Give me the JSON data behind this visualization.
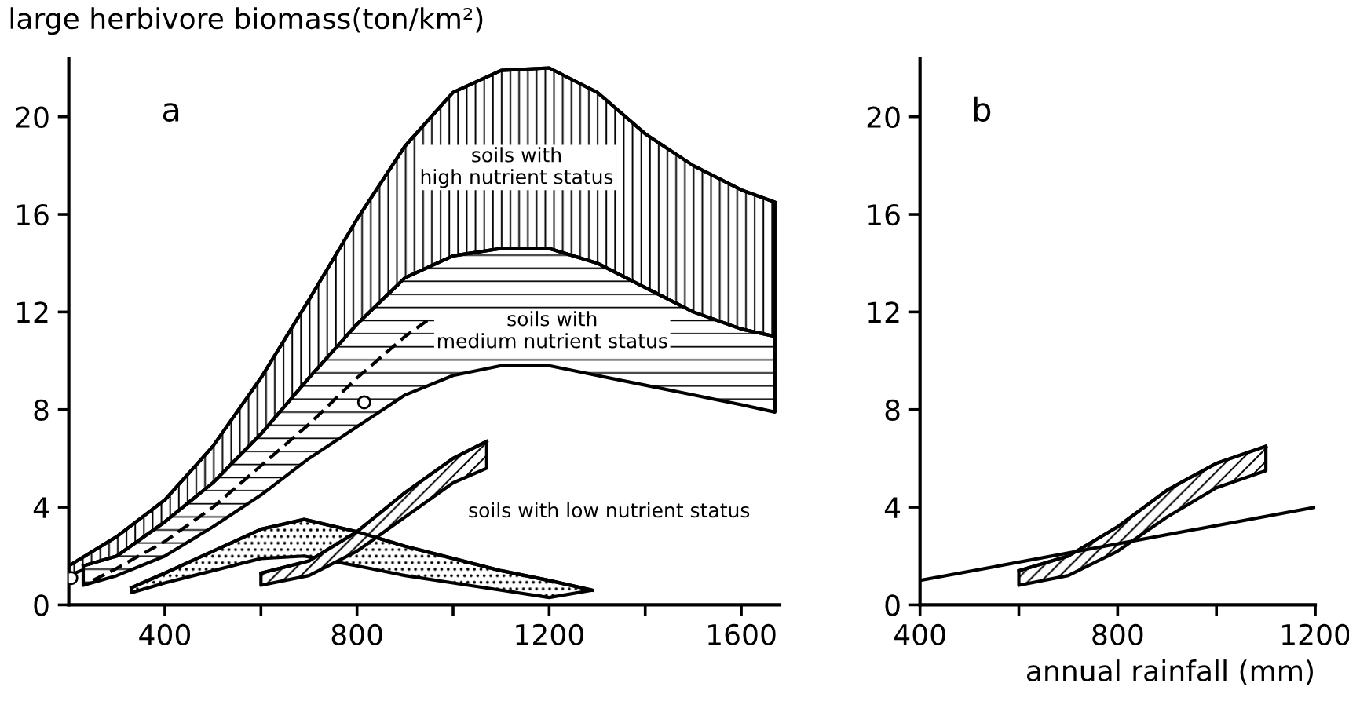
{
  "chart_data": [
    {
      "type": "line",
      "ylabel": "large herbivore biomass(ton/km²)",
      "xlim": [
        200,
        1680
      ],
      "ylim": [
        0,
        22.4
      ],
      "xticks": [
        {
          "value": 400,
          "label": "400"
        },
        {
          "value": 600,
          "label": null
        },
        {
          "value": 800,
          "label": "800"
        },
        {
          "value": 1000,
          "label": null
        },
        {
          "value": 1200,
          "label": "1200"
        },
        {
          "value": 1400,
          "label": null
        },
        {
          "value": 1600,
          "label": "1600"
        }
      ],
      "yticks": [
        0,
        4,
        8,
        12,
        16,
        20
      ],
      "grid": false,
      "legend": false,
      "annotations": [
        "a",
        "soils with\nhigh nutrient status",
        "soils with\nmedium nutrient status",
        "soils with low nutrient status"
      ],
      "series": [
        {
          "color": "#000000",
          "x": [
            200,
            300,
            400,
            500,
            600,
            700,
            800,
            900,
            1000,
            1100,
            1200,
            1300,
            1400,
            1500,
            1600,
            1670
          ],
          "values": [
            1.6,
            2.8,
            4.3,
            6.5,
            9.3,
            12.5,
            15.8,
            18.8,
            21.0,
            21.9,
            22.0,
            21.0,
            19.3,
            18.0,
            17.0,
            16.5
          ],
          "upper": [
            1.6,
            2.8,
            4.3,
            6.5,
            9.3,
            12.5,
            15.8,
            18.8,
            21.0,
            21.9,
            22.0,
            21.0,
            19.3,
            18.0,
            17.0,
            16.5
          ],
          "lower": [
            1.2,
            2.0,
            3.4,
            5.0,
            7.0,
            9.3,
            11.5,
            13.4,
            14.3,
            14.6,
            14.6,
            14.0,
            13.0,
            12.0,
            11.3,
            11.0
          ]
        },
        {
          "color": "#000000",
          "x": [
            230,
            300,
            400,
            500,
            600,
            700,
            800,
            900,
            1000,
            1100,
            1200,
            1300,
            1400,
            1500,
            1600,
            1670
          ],
          "values": [
            1.6,
            2.0,
            3.4,
            5.0,
            7.0,
            9.3,
            11.5,
            13.4,
            14.3,
            14.6,
            14.6,
            14.0,
            13.0,
            12.0,
            11.3,
            11.0
          ],
          "upper": [
            1.6,
            2.0,
            3.4,
            5.0,
            7.0,
            9.3,
            11.5,
            13.4,
            14.3,
            14.6,
            14.6,
            14.0,
            13.0,
            12.0,
            11.3,
            11.0
          ],
          "lower": [
            0.8,
            1.2,
            2.0,
            3.2,
            4.5,
            6.0,
            7.3,
            8.6,
            9.4,
            9.8,
            9.8,
            9.4,
            9.0,
            8.6,
            8.2,
            7.9
          ]
        },
        {
          "color": "#000000",
          "x": [
            330,
            400,
            500,
            600,
            690,
            800,
            900,
            1000,
            1100,
            1200,
            1290
          ],
          "values": [
            0.7,
            1.3,
            2.2,
            3.1,
            3.5,
            3.0,
            2.4,
            1.9,
            1.4,
            1.0,
            0.6
          ],
          "upper": [
            0.7,
            1.3,
            2.2,
            3.1,
            3.5,
            3.0,
            2.4,
            1.9,
            1.4,
            1.0,
            0.6
          ],
          "lower": [
            0.5,
            0.9,
            1.4,
            1.9,
            2.0,
            1.6,
            1.2,
            0.9,
            0.6,
            0.3,
            0.6
          ]
        },
        {
          "color": "#000000",
          "x": [
            600,
            700,
            800,
            900,
            1000,
            1070
          ],
          "values": [
            1.3,
            1.8,
            3.0,
            4.6,
            6.0,
            6.7
          ],
          "upper": [
            1.3,
            1.8,
            3.0,
            4.6,
            6.0,
            6.7
          ],
          "lower": [
            0.8,
            1.2,
            2.2,
            3.6,
            5.0,
            5.6
          ]
        },
        {
          "type": "line",
          "color": "#000000",
          "line_style": "dashed",
          "x": [
            250,
            300,
            400,
            500,
            600,
            700,
            800,
            900,
            950
          ],
          "values": [
            1.0,
            1.5,
            2.6,
            4.0,
            5.7,
            7.4,
            9.3,
            11.0,
            11.7
          ]
        },
        {
          "type": "scatter",
          "color": "#000000",
          "marker": "circle",
          "x": [
            205,
            815
          ],
          "values": [
            1.1,
            8.3
          ]
        }
      ]
    },
    {
      "type": "line",
      "xlabel": "annual rainfall (mm)",
      "xlim": [
        400,
        1200
      ],
      "ylim": [
        0,
        22.4
      ],
      "xticks": [
        {
          "value": 400,
          "label": "400"
        },
        {
          "value": 600,
          "label": null
        },
        {
          "value": 800,
          "label": "800"
        },
        {
          "value": 1000,
          "label": null
        },
        {
          "value": 1200,
          "label": "1200"
        }
      ],
      "yticks": [
        0,
        4,
        8,
        12,
        16,
        20
      ],
      "grid": false,
      "legend": false,
      "annotations": [
        "b"
      ],
      "series": [
        {
          "color": "#000000",
          "x": [
            600,
            700,
            800,
            900,
            1000,
            1100
          ],
          "values": [
            1.4,
            2.0,
            3.2,
            4.7,
            5.8,
            6.5
          ],
          "upper": [
            1.4,
            2.0,
            3.2,
            4.7,
            5.8,
            6.5
          ],
          "lower": [
            0.8,
            1.2,
            2.2,
            3.6,
            4.8,
            5.5
          ]
        },
        {
          "type": "line",
          "color": "#000000",
          "line_style": "solid",
          "x": [
            400,
            1200
          ],
          "values": [
            1.0,
            4.0
          ]
        }
      ]
    }
  ]
}
